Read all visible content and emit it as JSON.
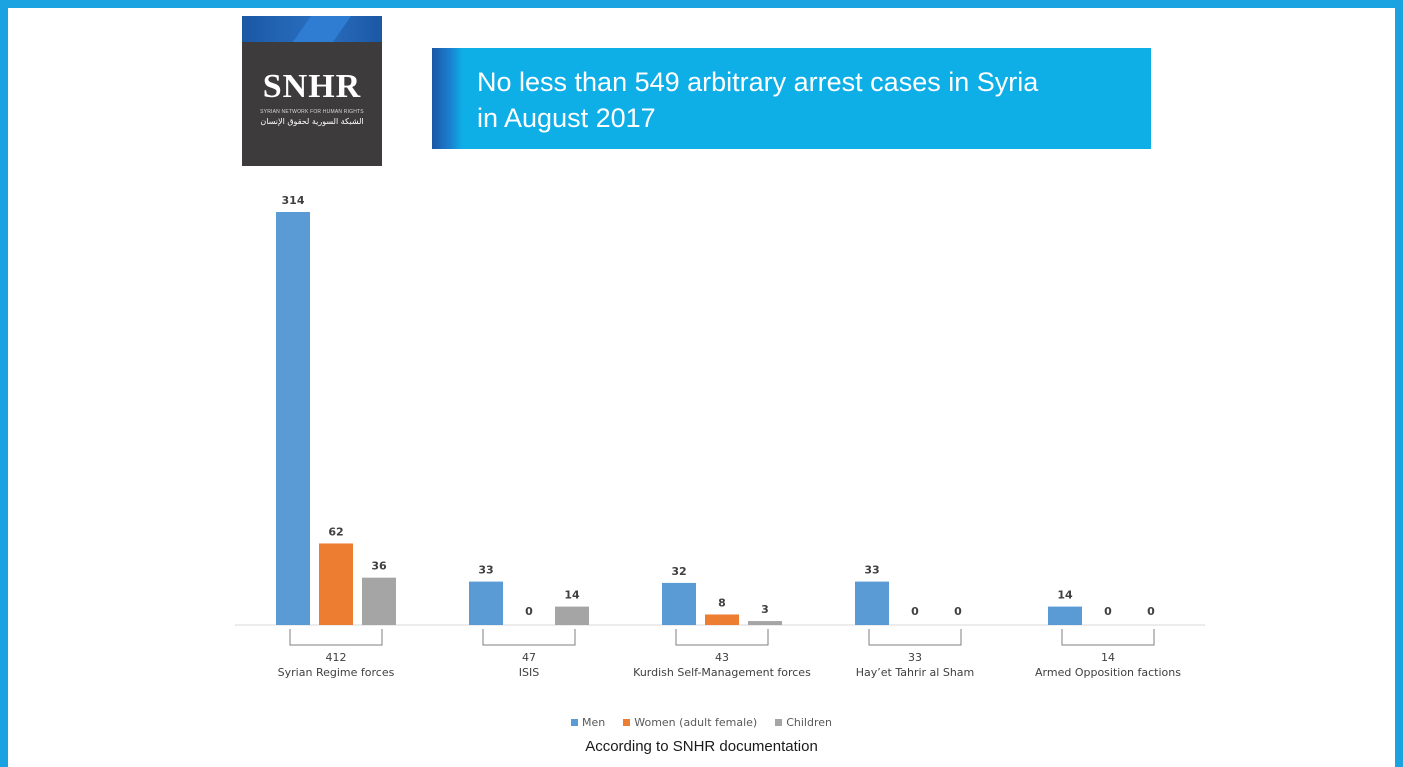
{
  "logo": {
    "brand": "SNHR",
    "subtitle": "SYRIAN NETWORK FOR HUMAN RIGHTS",
    "arabic": "الشبكة السورية لحقوق الإنسان"
  },
  "header": {
    "title": "No less than 549 arbitrary arrest cases in Syria\nin August 2017"
  },
  "footnote": "According to SNHR documentation",
  "colors": {
    "frame": "#1ba2e0",
    "banner": "#0eaee7",
    "men": "#5b9bd5",
    "women": "#ed7d31",
    "children": "#a5a5a5"
  },
  "chart_data": {
    "type": "bar",
    "title": "No less than 549 arbitrary arrest cases in Syria in August 2017",
    "xlabel": "",
    "ylabel": "",
    "ylim": [
      0,
      320
    ],
    "grid": false,
    "legend_position": "bottom",
    "categories": [
      "Syrian Regime forces",
      "ISIS",
      "Kurdish Self-Management forces",
      "Hay’et Tahrir al Sham",
      "Armed Opposition factions"
    ],
    "totals": [
      412,
      47,
      43,
      33,
      14
    ],
    "series": [
      {
        "name": "Men",
        "values": [
          314,
          33,
          32,
          33,
          14
        ]
      },
      {
        "name": "Women (adult female)",
        "values": [
          62,
          0,
          8,
          0,
          0
        ]
      },
      {
        "name": "Children",
        "values": [
          36,
          14,
          3,
          0,
          0
        ]
      }
    ]
  }
}
